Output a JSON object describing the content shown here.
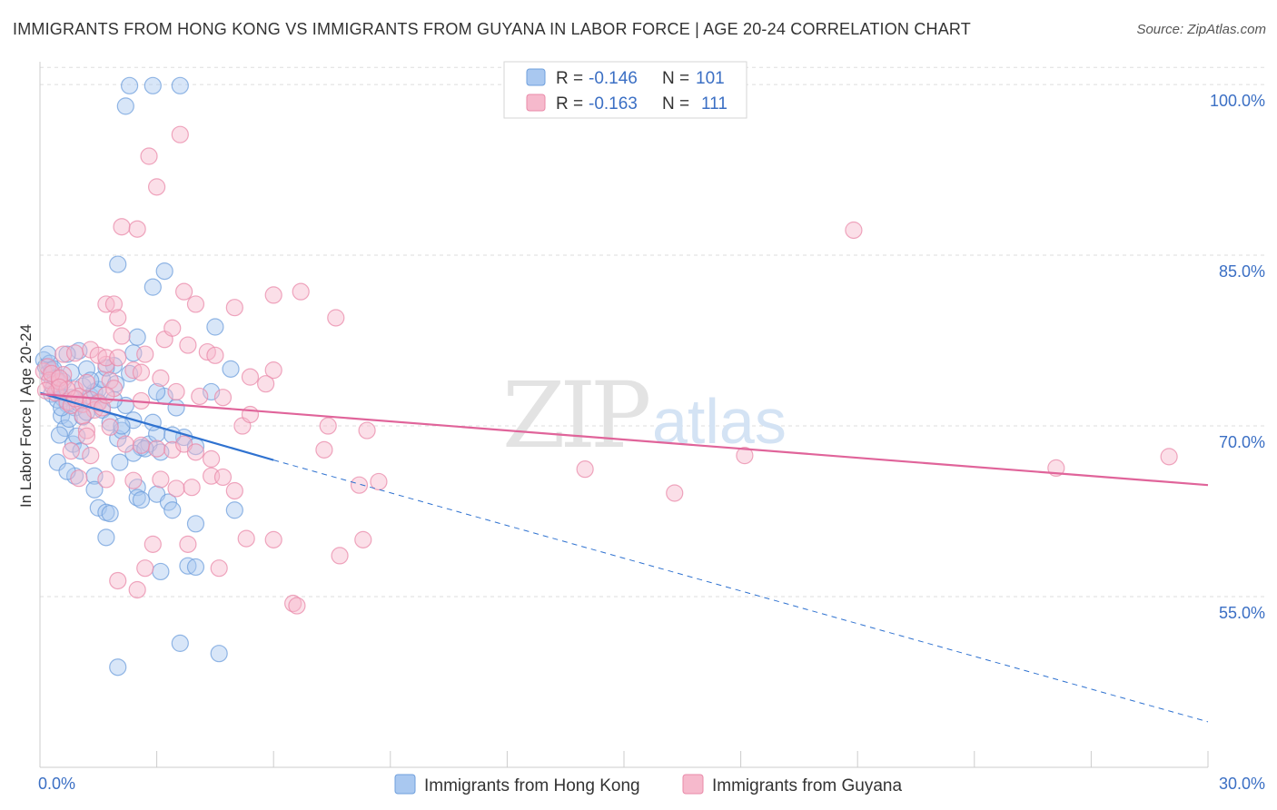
{
  "title": "IMMIGRANTS FROM HONG KONG VS IMMIGRANTS FROM GUYANA IN LABOR FORCE | AGE 20-24 CORRELATION CHART",
  "source": "Source: ZipAtlas.com",
  "watermark": {
    "zip": "ZIP",
    "atlas": "atlas"
  },
  "colors": {
    "blue_fill": "#a9c8f0",
    "blue_stroke": "#6f9fdc",
    "blue_line": "#2f72d0",
    "pink_fill": "#f6b9cc",
    "pink_stroke": "#e98aa9",
    "pink_line": "#e0649a",
    "grid": "#dddddd",
    "tick_label": "#3b6fc4"
  },
  "legend": {
    "rows": [
      {
        "r_label": "R = ",
        "r_value": "-0.146",
        "n_label": "N = ",
        "n_value": "101"
      },
      {
        "r_label": "R = ",
        "r_value": "-0.163",
        "n_label": "N = ",
        "n_value": "111"
      }
    ]
  },
  "chart_data": {
    "type": "scatter",
    "title": "IMMIGRANTS FROM HONG KONG VS IMMIGRANTS FROM GUYANA IN LABOR FORCE | AGE 20-24 CORRELATION CHART",
    "xlabel": "",
    "ylabel": "In Labor Force | Age 20-24",
    "xlim": [
      0,
      30
    ],
    "ylim": [
      40,
      102
    ],
    "x_tick_labels": [
      "0.0%",
      "30.0%"
    ],
    "y_ticks": [
      55,
      70,
      85,
      100
    ],
    "y_tick_labels": [
      "55.0%",
      "70.0%",
      "85.0%",
      "100.0%"
    ],
    "grid": true,
    "legend_position": "top-center",
    "series": [
      {
        "name": "Immigrants from Hong Kong",
        "color": "#a9c8f0",
        "trend": {
          "x": [
            0,
            6.0
          ],
          "y": [
            72.9,
            67.0
          ],
          "dashed_to_x": 30,
          "dashed_to_y": 44.0
        },
        "points": [
          [
            0.1,
            75.8
          ],
          [
            0.15,
            75.2
          ],
          [
            0.2,
            74.6
          ],
          [
            0.25,
            75.5
          ],
          [
            0.3,
            74.9
          ],
          [
            0.2,
            76.3
          ],
          [
            0.35,
            75.0
          ],
          [
            0.4,
            74.2
          ],
          [
            0.45,
            73.1
          ],
          [
            0.5,
            73.8
          ],
          [
            0.3,
            72.8
          ],
          [
            0.6,
            72.4
          ],
          [
            0.7,
            71.9
          ],
          [
            0.8,
            72.5
          ],
          [
            0.9,
            71.6
          ],
          [
            1.0,
            72.0
          ],
          [
            0.55,
            70.9
          ],
          [
            0.65,
            69.8
          ],
          [
            0.75,
            70.6
          ],
          [
            0.5,
            69.2
          ],
          [
            0.85,
            68.4
          ],
          [
            0.95,
            69.1
          ],
          [
            1.1,
            70.8
          ],
          [
            1.2,
            71.2
          ],
          [
            1.3,
            72.6
          ],
          [
            1.4,
            73.0
          ],
          [
            1.5,
            72.1
          ],
          [
            1.6,
            71.4
          ],
          [
            1.8,
            70.3
          ],
          [
            2.0,
            68.9
          ],
          [
            2.1,
            69.6
          ],
          [
            2.2,
            71.8
          ],
          [
            2.4,
            70.5
          ],
          [
            2.6,
            68.1
          ],
          [
            2.8,
            68.4
          ],
          [
            3.0,
            69.3
          ],
          [
            3.2,
            72.6
          ],
          [
            3.5,
            71.6
          ],
          [
            3.7,
            69.0
          ],
          [
            4.0,
            68.2
          ],
          [
            1.0,
            76.6
          ],
          [
            1.2,
            75.0
          ],
          [
            1.5,
            73.2
          ],
          [
            2.3,
            74.6
          ],
          [
            2.4,
            76.4
          ],
          [
            2.5,
            77.8
          ],
          [
            1.9,
            75.3
          ],
          [
            0.7,
            76.3
          ],
          [
            4.5,
            78.7
          ],
          [
            4.9,
            75.0
          ],
          [
            2.0,
            84.2
          ],
          [
            3.2,
            83.6
          ],
          [
            2.9,
            82.2
          ],
          [
            2.2,
            98.1
          ],
          [
            2.3,
            99.9
          ],
          [
            2.9,
            99.9
          ],
          [
            3.6,
            99.9
          ],
          [
            4.4,
            73.0
          ],
          [
            3.0,
            73.0
          ],
          [
            1.6,
            74.1
          ],
          [
            0.9,
            65.6
          ],
          [
            1.4,
            65.6
          ],
          [
            1.4,
            64.4
          ],
          [
            1.5,
            62.8
          ],
          [
            1.7,
            62.4
          ],
          [
            1.8,
            62.3
          ],
          [
            1.7,
            60.2
          ],
          [
            2.5,
            64.6
          ],
          [
            2.5,
            63.7
          ],
          [
            2.6,
            63.5
          ],
          [
            3.0,
            64.0
          ],
          [
            3.3,
            63.3
          ],
          [
            3.4,
            62.6
          ],
          [
            4.0,
            61.4
          ],
          [
            5.0,
            62.6
          ],
          [
            3.8,
            57.7
          ],
          [
            3.1,
            57.2
          ],
          [
            4.0,
            57.6
          ],
          [
            3.6,
            50.9
          ],
          [
            4.6,
            50.0
          ],
          [
            2.0,
            48.8
          ],
          [
            0.45,
            66.8
          ],
          [
            0.7,
            66.0
          ],
          [
            1.05,
            67.8
          ],
          [
            2.05,
            66.8
          ],
          [
            2.4,
            67.6
          ],
          [
            2.7,
            68.0
          ],
          [
            0.35,
            73.4
          ],
          [
            0.45,
            72.3
          ],
          [
            0.55,
            71.6
          ],
          [
            0.6,
            73.9
          ],
          [
            0.8,
            74.7
          ],
          [
            1.1,
            73.5
          ],
          [
            1.3,
            74.0
          ],
          [
            1.7,
            75.1
          ],
          [
            1.9,
            72.3
          ],
          [
            2.1,
            70.0
          ],
          [
            2.9,
            70.3
          ],
          [
            3.4,
            69.2
          ],
          [
            3.1,
            67.7
          ],
          [
            1.95,
            73.7
          ]
        ]
      },
      {
        "name": "Immigrants from Guyana",
        "color": "#f6b9cc",
        "trend": {
          "x": [
            0,
            30
          ],
          "y": [
            72.8,
            64.8
          ]
        },
        "points": [
          [
            0.1,
            74.8
          ],
          [
            0.2,
            75.2
          ],
          [
            0.3,
            73.6
          ],
          [
            0.25,
            74.0
          ],
          [
            0.4,
            72.9
          ],
          [
            0.5,
            73.9
          ],
          [
            0.6,
            74.5
          ],
          [
            0.7,
            72.1
          ],
          [
            0.8,
            71.8
          ],
          [
            0.9,
            73.2
          ],
          [
            1.0,
            72.6
          ],
          [
            1.1,
            71.9
          ],
          [
            1.2,
            73.8
          ],
          [
            1.3,
            72.3
          ],
          [
            1.4,
            71.4
          ],
          [
            1.5,
            72.0
          ],
          [
            1.6,
            71.6
          ],
          [
            1.7,
            75.4
          ],
          [
            1.8,
            74.0
          ],
          [
            1.9,
            73.3
          ],
          [
            0.6,
            76.3
          ],
          [
            0.9,
            76.4
          ],
          [
            1.3,
            76.7
          ],
          [
            1.5,
            76.2
          ],
          [
            1.7,
            76.0
          ],
          [
            2.0,
            76.0
          ],
          [
            2.4,
            74.9
          ],
          [
            2.6,
            74.7
          ],
          [
            3.1,
            74.2
          ],
          [
            3.5,
            73.0
          ],
          [
            1.7,
            80.7
          ],
          [
            1.9,
            80.7
          ],
          [
            2.0,
            79.5
          ],
          [
            2.1,
            77.9
          ],
          [
            2.7,
            76.3
          ],
          [
            3.2,
            77.6
          ],
          [
            3.4,
            78.6
          ],
          [
            3.8,
            77.1
          ],
          [
            4.3,
            76.5
          ],
          [
            4.5,
            76.2
          ],
          [
            3.7,
            81.8
          ],
          [
            4.0,
            80.7
          ],
          [
            5.0,
            80.4
          ],
          [
            6.0,
            81.5
          ],
          [
            6.7,
            81.8
          ],
          [
            7.6,
            79.5
          ],
          [
            6.0,
            74.9
          ],
          [
            5.8,
            73.7
          ],
          [
            5.4,
            74.3
          ],
          [
            4.7,
            72.5
          ],
          [
            2.1,
            87.5
          ],
          [
            2.5,
            87.3
          ],
          [
            3.0,
            91.0
          ],
          [
            2.8,
            93.7
          ],
          [
            3.6,
            95.6
          ],
          [
            20.9,
            87.2
          ],
          [
            1.2,
            69.6
          ],
          [
            1.8,
            69.9
          ],
          [
            2.2,
            68.4
          ],
          [
            2.6,
            68.3
          ],
          [
            3.0,
            68.0
          ],
          [
            3.4,
            67.9
          ],
          [
            3.7,
            68.4
          ],
          [
            4.0,
            67.7
          ],
          [
            4.4,
            67.1
          ],
          [
            5.2,
            70.0
          ],
          [
            5.4,
            71.0
          ],
          [
            7.4,
            70.0
          ],
          [
            8.4,
            69.6
          ],
          [
            7.3,
            67.9
          ],
          [
            1.0,
            65.4
          ],
          [
            1.7,
            65.3
          ],
          [
            2.4,
            65.2
          ],
          [
            3.1,
            65.3
          ],
          [
            3.5,
            64.5
          ],
          [
            3.9,
            64.6
          ],
          [
            4.4,
            65.6
          ],
          [
            4.7,
            65.5
          ],
          [
            5.0,
            64.3
          ],
          [
            8.2,
            64.8
          ],
          [
            8.7,
            65.1
          ],
          [
            14.0,
            66.2
          ],
          [
            16.3,
            64.1
          ],
          [
            18.1,
            67.4
          ],
          [
            26.1,
            66.3
          ],
          [
            29.0,
            67.3
          ],
          [
            2.0,
            56.4
          ],
          [
            2.5,
            55.6
          ],
          [
            2.7,
            57.5
          ],
          [
            2.9,
            59.6
          ],
          [
            3.8,
            59.6
          ],
          [
            4.6,
            57.5
          ],
          [
            5.3,
            60.1
          ],
          [
            6.0,
            60.0
          ],
          [
            6.5,
            54.4
          ],
          [
            6.6,
            54.2
          ],
          [
            7.7,
            58.6
          ],
          [
            8.3,
            60.0
          ],
          [
            0.3,
            74.6
          ],
          [
            0.5,
            74.2
          ],
          [
            0.7,
            73.2
          ],
          [
            0.9,
            72.4
          ],
          [
            1.1,
            70.9
          ],
          [
            1.2,
            69.1
          ],
          [
            1.3,
            67.4
          ],
          [
            0.8,
            67.8
          ],
          [
            0.5,
            73.4
          ],
          [
            0.15,
            73.1
          ],
          [
            1.7,
            72.7
          ],
          [
            2.6,
            72.2
          ],
          [
            4.1,
            72.6
          ]
        ]
      }
    ]
  },
  "bottom_legend": [
    "Immigrants from Hong Kong",
    "Immigrants from Guyana"
  ]
}
